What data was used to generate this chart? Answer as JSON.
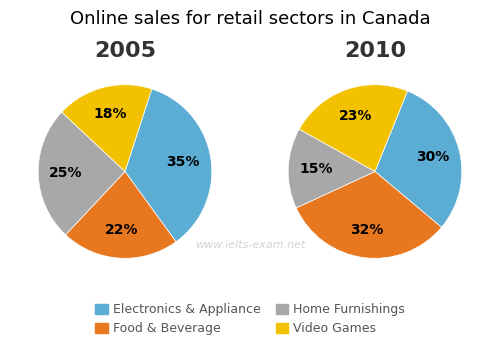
{
  "title": "Online sales for retail sectors in Canada",
  "title_fontsize": 13,
  "years": [
    "2005",
    "2010"
  ],
  "year_fontsize": 16,
  "categories": [
    "Electronics & Appliance",
    "Food & Beverage",
    "Home Furnishings",
    "Video Games"
  ],
  "colors": [
    "#5BADD4",
    "#E87820",
    "#A8A8A8",
    "#F2C200"
  ],
  "data_2005": [
    35,
    22,
    25,
    18
  ],
  "data_2010": [
    30,
    32,
    15,
    23
  ],
  "startangle_2005": 72,
  "startangle_2010": 68,
  "watermark": "www.ielts-exam.net",
  "watermark_color": "#C8C8C8",
  "watermark_fontsize": 8,
  "legend_fontsize": 9,
  "pct_fontsize": 10,
  "background_color": "#ffffff"
}
